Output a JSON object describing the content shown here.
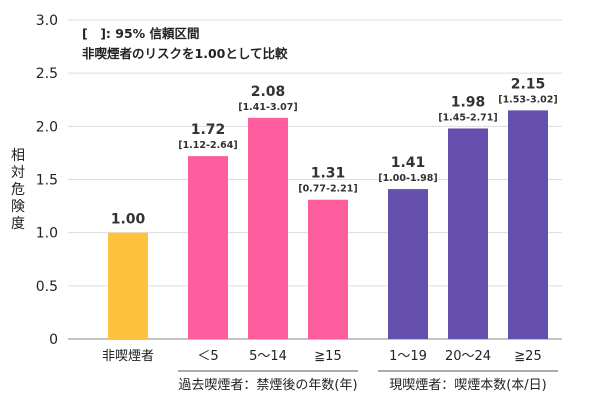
{
  "chart_data": {
    "type": "bar",
    "notes": [
      "[　]: 95% 信頼区間",
      "非喫煙者のリスクを1.00として比較"
    ],
    "ylabel": "相対危険度",
    "ylim": [
      0,
      3.0
    ],
    "yticks": [
      "0",
      "0.5",
      "1.0",
      "1.5",
      "2.0",
      "2.5",
      "3.0"
    ],
    "grid": true,
    "categories": [
      "非喫煙者",
      "＜5",
      "5～14",
      "≧15",
      "1～19",
      "20～24",
      "≧25"
    ],
    "values": [
      1.0,
      1.72,
      2.08,
      1.31,
      1.41,
      1.98,
      2.15
    ],
    "value_labels": [
      "1.00",
      "1.72",
      "2.08",
      "1.31",
      "1.41",
      "1.98",
      "2.15"
    ],
    "ci_labels": [
      "",
      "[1.12-2.64]",
      "[1.41-3.07]",
      "[0.77-2.21]",
      "[1.00-1.98]",
      "[1.45-2.71]",
      "[1.53-3.02]"
    ],
    "groups": [
      {
        "label": "過去喫煙者：禁煙後の年数(年)",
        "categories": [
          1,
          2,
          3
        ]
      },
      {
        "label": "現喫煙者：喫煙本数(本/日)",
        "categories": [
          4,
          5,
          6
        ]
      }
    ],
    "colors": [
      "#ffc23f",
      "#ff5e9e",
      "#ff5e9e",
      "#ff5e9e",
      "#6550ad",
      "#6550ad",
      "#6550ad"
    ]
  }
}
